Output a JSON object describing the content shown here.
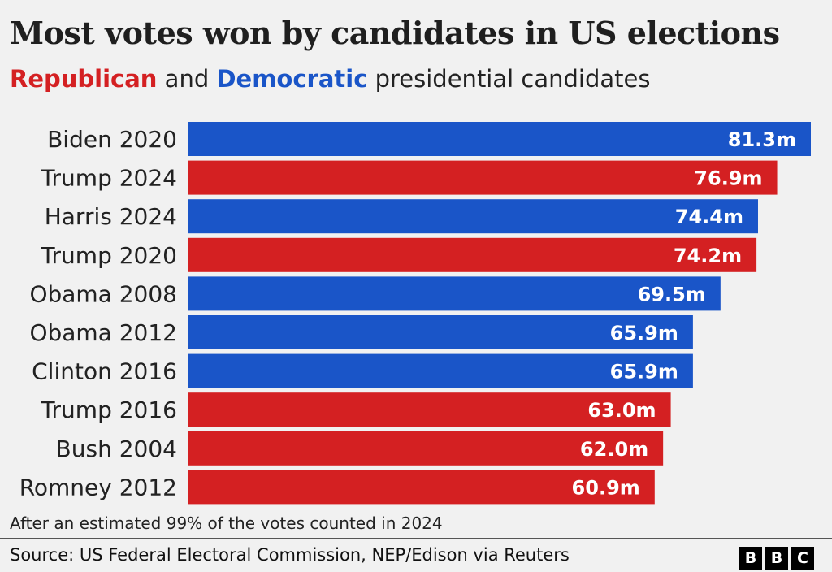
{
  "title": "Most votes won by candidates in US elections",
  "subtitle": {
    "republican": "Republican",
    "and": " and ",
    "democratic": "Democratic",
    "rest": " presidential candidates"
  },
  "note": "After an estimated 99% of the votes counted in 2024",
  "source": "Source: US Federal Electoral Commission, NEP/Edison via Reuters",
  "logo": {
    "letters": [
      "B",
      "B",
      "C"
    ]
  },
  "colors": {
    "republican": "#d42022",
    "democratic": "#1a55c8",
    "background": "#f1f1f1"
  },
  "chart_data": {
    "type": "bar",
    "orientation": "horizontal",
    "categories": [
      "Biden 2020",
      "Trump 2024",
      "Harris 2024",
      "Trump 2020",
      "Obama 2008",
      "Obama 2012",
      "Clinton 2016",
      "Trump 2016",
      "Bush 2004",
      "Romney 2012"
    ],
    "values": [
      81.3,
      76.9,
      74.4,
      74.2,
      69.5,
      65.9,
      65.9,
      63.0,
      62.0,
      60.9
    ],
    "value_labels": [
      "81.3m",
      "76.9m",
      "74.4m",
      "74.2m",
      "69.5m",
      "65.9m",
      "65.9m",
      "63.0m",
      "62.0m",
      "60.9m"
    ],
    "party": [
      "democratic",
      "republican",
      "democratic",
      "republican",
      "democratic",
      "democratic",
      "democratic",
      "republican",
      "republican",
      "republican"
    ],
    "xlim": [
      0,
      81.3
    ],
    "grid": false,
    "legend": "in subtitle"
  }
}
